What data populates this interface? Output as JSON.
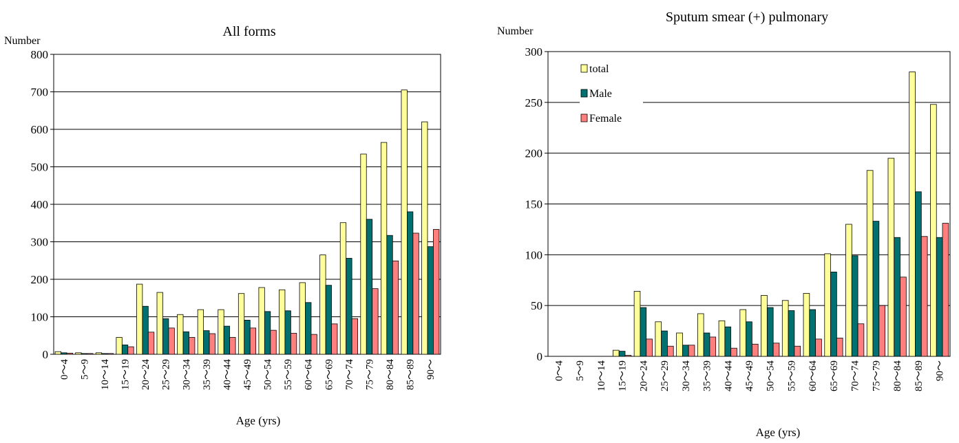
{
  "chart_data": [
    {
      "type": "bar",
      "title": "All forms",
      "ylabel": "Number",
      "xlabel": "Age (yrs)",
      "ylim": [
        0,
        800
      ],
      "yticks": [
        0,
        100,
        200,
        300,
        400,
        500,
        600,
        700,
        800
      ],
      "grid": true,
      "legend": "none",
      "categories": [
        "0～4",
        "5～9",
        "10～14",
        "15～19",
        "20～24",
        "25～29",
        "30～34",
        "35～39",
        "40～44",
        "45～49",
        "50～54",
        "55～59",
        "60～64",
        "65～69",
        "70～74",
        "75～79",
        "80～84",
        "85～89",
        "90～"
      ],
      "series": [
        {
          "key": "total",
          "color": "#ffff99",
          "values": [
            7,
            4,
            4,
            45,
            187,
            165,
            106,
            119,
            119,
            162,
            178,
            172,
            191,
            265,
            351,
            534,
            565,
            705,
            620
          ]
        },
        {
          "key": "male",
          "color": "#007070",
          "values": [
            4,
            2,
            2,
            25,
            128,
            95,
            60,
            63,
            75,
            91,
            114,
            116,
            138,
            184,
            256,
            360,
            317,
            380,
            287
          ]
        },
        {
          "key": "female",
          "color": "#ff7f7f",
          "values": [
            3,
            2,
            2,
            20,
            59,
            70,
            45,
            55,
            45,
            70,
            64,
            56,
            53,
            81,
            95,
            175,
            249,
            323,
            333
          ]
        }
      ]
    },
    {
      "type": "bar",
      "title": "Sputum smear (+) pulmonary",
      "ylabel": "Number",
      "xlabel": "Age (yrs)",
      "ylim": [
        0,
        300
      ],
      "yticks": [
        0,
        50,
        100,
        150,
        200,
        250,
        300
      ],
      "grid": true,
      "legend": "top-left",
      "categories": [
        "0～4",
        "5～9",
        "10～14",
        "15～19",
        "20～24",
        "25～29",
        "30～34",
        "35～39",
        "40～44",
        "45～49",
        "50～54",
        "55～59",
        "60～64",
        "65～69",
        "70～74",
        "75～79",
        "80～84",
        "85～89",
        "90～"
      ],
      "series": [
        {
          "key": "total",
          "name": "total",
          "color": "#ffff99",
          "values": [
            0,
            0,
            0,
            6,
            64,
            34,
            23,
            42,
            35,
            46,
            60,
            55,
            62,
            101,
            130,
            183,
            195,
            280,
            248
          ]
        },
        {
          "key": "male",
          "name": "Male",
          "color": "#007070",
          "values": [
            0,
            0,
            0,
            5,
            48,
            25,
            11,
            23,
            29,
            34,
            48,
            45,
            46,
            83,
            99,
            133,
            117,
            162,
            117
          ]
        },
        {
          "key": "female",
          "name": "Female",
          "color": "#ff7f7f",
          "values": [
            0,
            0,
            0,
            1,
            17,
            10,
            11,
            19,
            8,
            12,
            13,
            10,
            17,
            18,
            32,
            50,
            78,
            118,
            131
          ]
        }
      ]
    }
  ]
}
